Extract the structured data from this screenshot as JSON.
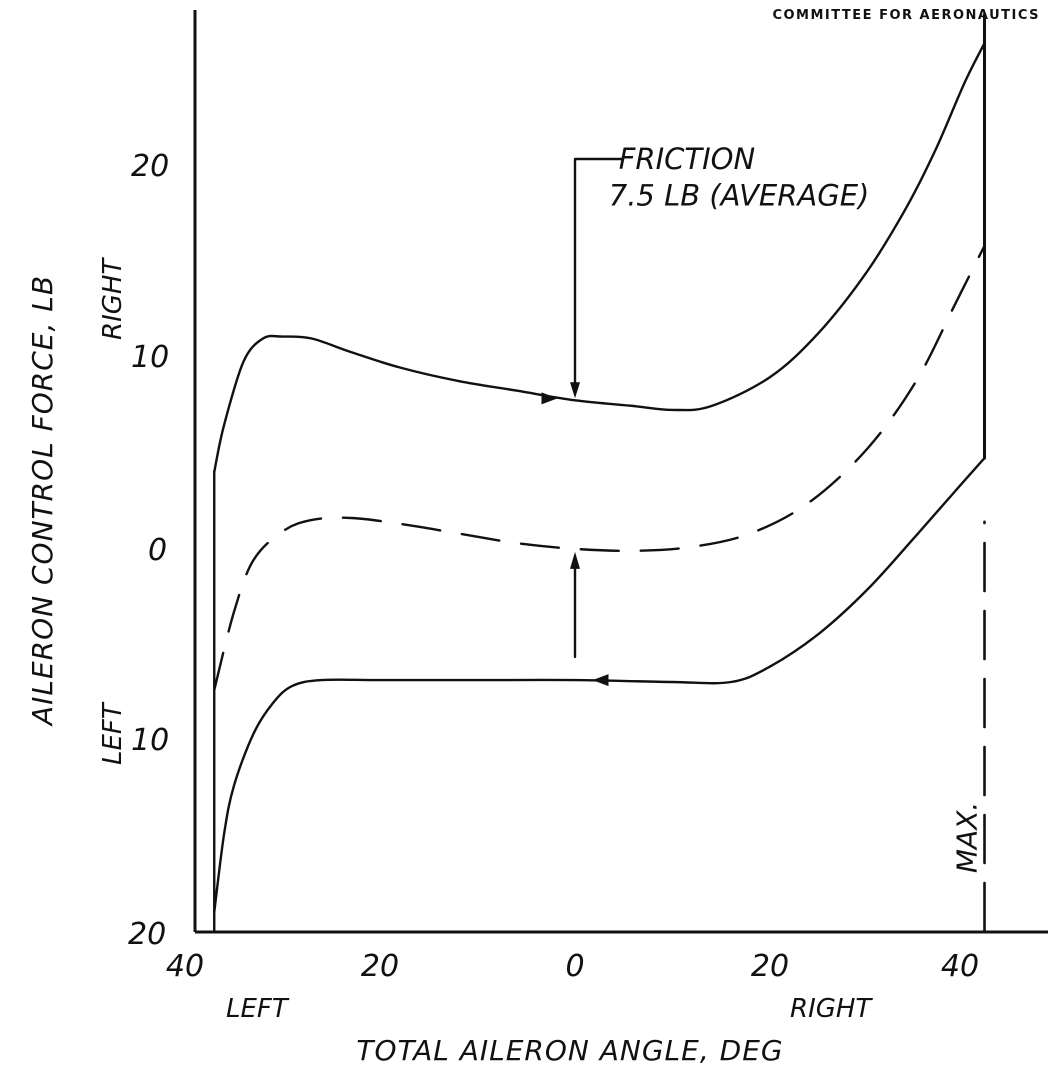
{
  "header": {
    "text": "COMMITTEE FOR AERONAUTICS"
  },
  "chart_data": {
    "type": "line",
    "xlabel": "TOTAL AILERON ANGLE, DEG",
    "ylabel": "AILERON CONTROL FORCE, LB",
    "x_direction_labels": {
      "left": "LEFT",
      "right": "RIGHT"
    },
    "y_direction_labels": {
      "up": "RIGHT",
      "down": "LEFT"
    },
    "x_ticks": [
      {
        "value": -40,
        "label": "40"
      },
      {
        "value": -20,
        "label": "20"
      },
      {
        "value": 0,
        "label": "0"
      },
      {
        "value": 20,
        "label": "20"
      },
      {
        "value": 40,
        "label": "40"
      }
    ],
    "y_ticks": [
      {
        "value": 20,
        "label": "20"
      },
      {
        "value": 10,
        "label": "10"
      },
      {
        "value": 0,
        "label": "0"
      },
      {
        "value": -10,
        "label": "10"
      },
      {
        "value": -20,
        "label": "20"
      }
    ],
    "xlim": [
      -42.5,
      45
    ],
    "ylim": [
      -20,
      28
    ],
    "grid": false,
    "series": [
      {
        "style": "solid",
        "points": [
          [
            -37,
            3.8
          ],
          [
            -36,
            6.2
          ],
          [
            -34,
            9.5
          ],
          [
            -32,
            10.7
          ],
          [
            -30,
            10.8
          ],
          [
            -27,
            10.7
          ],
          [
            -23,
            10
          ],
          [
            -18,
            9.2
          ],
          [
            -12,
            8.5
          ],
          [
            -6,
            8
          ],
          [
            0,
            7.5
          ],
          [
            6,
            7.2
          ],
          [
            10,
            7
          ],
          [
            14,
            7.2
          ],
          [
            20,
            8.7
          ],
          [
            25,
            11
          ],
          [
            30,
            14.2
          ],
          [
            34,
            17.5
          ],
          [
            37,
            20.5
          ],
          [
            40,
            24
          ],
          [
            42,
            26
          ]
        ]
      },
      {
        "style": "dashed",
        "points": [
          [
            -37,
            -7.5
          ],
          [
            -35,
            -3.5
          ],
          [
            -33,
            -0.8
          ],
          [
            -30,
            0.7
          ],
          [
            -27,
            1.3
          ],
          [
            -23,
            1.4
          ],
          [
            -18,
            1.1
          ],
          [
            -12,
            0.6
          ],
          [
            -6,
            0.1
          ],
          [
            0,
            -0.2
          ],
          [
            6,
            -0.3
          ],
          [
            12,
            -0.1
          ],
          [
            18,
            0.6
          ],
          [
            24,
            2.2
          ],
          [
            30,
            5
          ],
          [
            35,
            8.5
          ],
          [
            39,
            12.5
          ],
          [
            42,
            15.5
          ]
        ]
      },
      {
        "style": "solid",
        "points": [
          [
            -37,
            -19
          ],
          [
            -36,
            -15
          ],
          [
            -35,
            -12.5
          ],
          [
            -33,
            -9.8
          ],
          [
            -31,
            -8.2
          ],
          [
            -29,
            -7.3
          ],
          [
            -26,
            -7
          ],
          [
            -20,
            -7
          ],
          [
            -10,
            -7
          ],
          [
            0,
            -7
          ],
          [
            10,
            -7.1
          ],
          [
            16,
            -7.1
          ],
          [
            20,
            -6.3
          ],
          [
            25,
            -4.6
          ],
          [
            30,
            -2.3
          ],
          [
            35,
            0.5
          ],
          [
            39,
            2.8
          ],
          [
            42,
            4.5
          ]
        ]
      }
    ],
    "boundaries": [
      {
        "x": -37,
        "from": -20,
        "to": 3.8,
        "style": "solid"
      },
      {
        "x": 42,
        "from": 4.5,
        "to": 27.5,
        "style": "solid"
      },
      {
        "x": 42,
        "from": -20,
        "to": 1.2,
        "style": "dashed",
        "label": "MAX."
      }
    ],
    "annotations": [
      {
        "text": "FRICTION",
        "x": 5,
        "y": 20
      },
      {
        "text": "7.5 LB (AVERAGE)",
        "x": 5,
        "y": 18.1
      }
    ],
    "friction_arrows": [
      {
        "x": 0,
        "from": 20,
        "to": 7.5
      },
      {
        "x": 0,
        "from": -5.8,
        "to": -0.2
      }
    ],
    "direction_arrows": [
      {
        "x": -2,
        "y": 7.6,
        "dir": "right"
      },
      {
        "x": 2,
        "y": -7,
        "dir": "left"
      }
    ]
  }
}
